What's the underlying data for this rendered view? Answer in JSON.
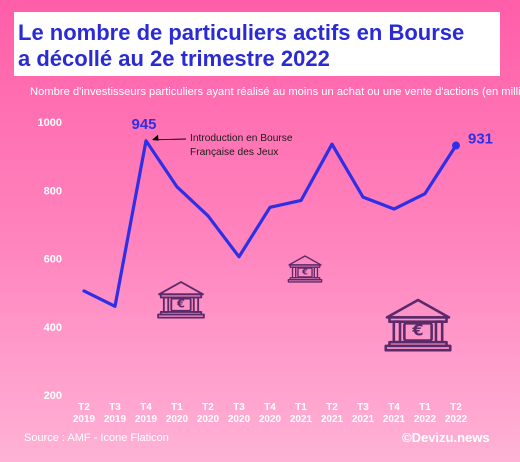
{
  "title_line1": "Le nombre de particuliers actifs en Bourse",
  "title_line2": "a décollé au 2e trimestre 2022",
  "subtitle": "Nombre d'investisseurs particuliers ayant réalisé au moins un achat ou une vente d'actions (en milliers)",
  "source": "Source : AMF - Icone Flaticon",
  "brand": "©Devizu.news",
  "colors": {
    "line": "#2f2fe6",
    "axis_text": "#ffffff",
    "value_label": "#2f2fe6",
    "icon": "#5a2a6a"
  },
  "chart_data": {
    "type": "line",
    "categories": [
      [
        "T2",
        "2019"
      ],
      [
        "T3",
        "2019"
      ],
      [
        "T4",
        "2019"
      ],
      [
        "T1",
        "2020"
      ],
      [
        "T2",
        "2020"
      ],
      [
        "T3",
        "2020"
      ],
      [
        "T4",
        "2020"
      ],
      [
        "T1",
        "2021"
      ],
      [
        "T2",
        "2021"
      ],
      [
        "T3",
        "2021"
      ],
      [
        "T4",
        "2021"
      ],
      [
        "T1",
        "2022"
      ],
      [
        "T2",
        "2022"
      ]
    ],
    "series": [
      {
        "values": [
          505,
          460,
          945,
          810,
          725,
          605,
          750,
          770,
          935,
          780,
          745,
          790,
          931
        ]
      }
    ],
    "ylim": [
      200,
      1000
    ],
    "yticks": [
      200,
      400,
      600,
      800,
      1000
    ],
    "data_labels": [
      {
        "index": 2,
        "text": "945"
      },
      {
        "index": 12,
        "text": "931"
      }
    ],
    "annotation": {
      "index": 2,
      "lines": [
        "Introduction en Bourse",
        "Française des Jeux"
      ]
    },
    "grid": false,
    "legend": "none"
  }
}
